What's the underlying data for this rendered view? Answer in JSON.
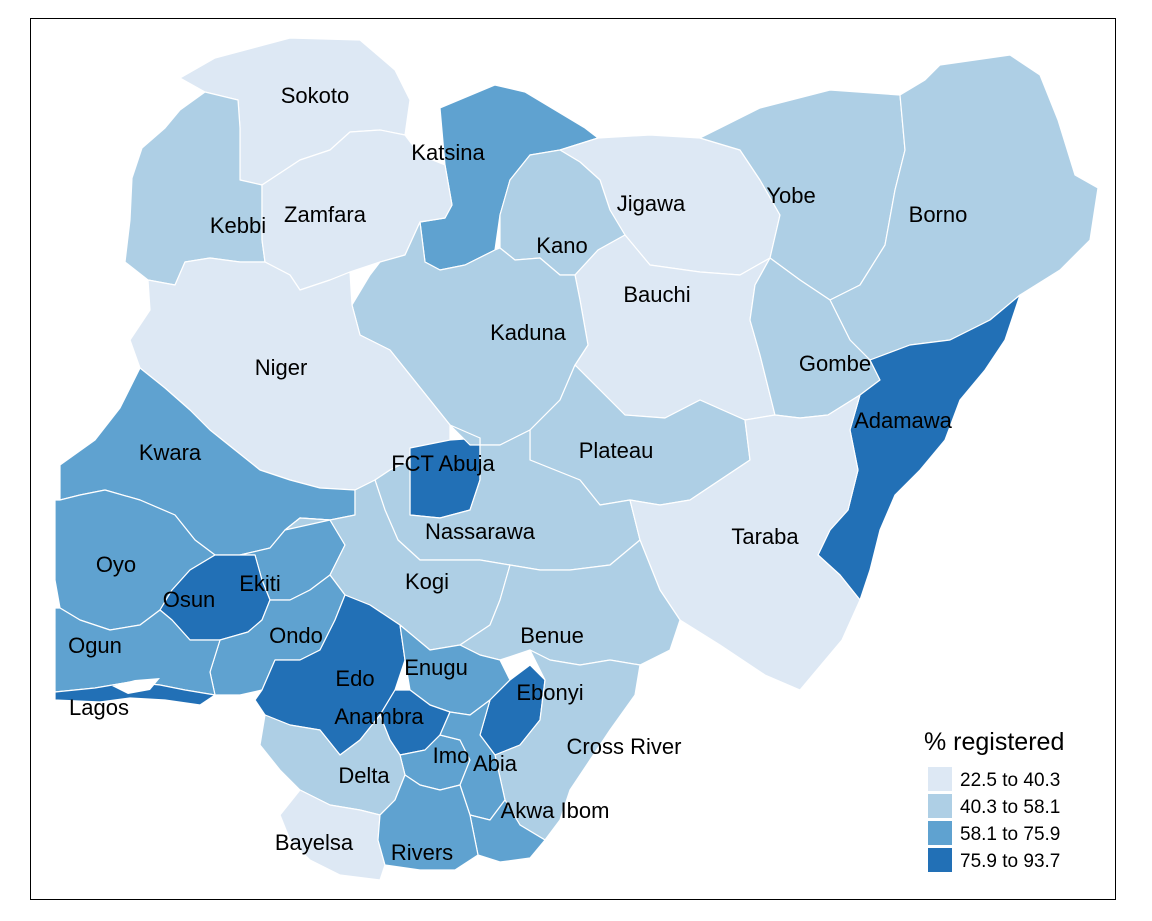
{
  "legend": {
    "title": "% registered",
    "bins": [
      {
        "label": "22.5 to 40.3",
        "color": "#dde8f4"
      },
      {
        "label": "40.3 to 58.1",
        "color": "#aecfe5"
      },
      {
        "label": "58.1 to 75.9",
        "color": "#5fa2d0"
      },
      {
        "label": "75.9 to 93.7",
        "color": "#2270b6"
      }
    ]
  },
  "states": [
    {
      "name": "Sokoto",
      "bin": 0
    },
    {
      "name": "Katsina",
      "bin": 2
    },
    {
      "name": "Kebbi",
      "bin": 1
    },
    {
      "name": "Zamfara",
      "bin": 0
    },
    {
      "name": "Jigawa",
      "bin": 0
    },
    {
      "name": "Kano",
      "bin": 1
    },
    {
      "name": "Yobe",
      "bin": 1
    },
    {
      "name": "Borno",
      "bin": 1
    },
    {
      "name": "Bauchi",
      "bin": 0
    },
    {
      "name": "Kaduna",
      "bin": 1
    },
    {
      "name": "Niger",
      "bin": 0
    },
    {
      "name": "Gombe",
      "bin": 1
    },
    {
      "name": "Adamawa",
      "bin": 3
    },
    {
      "name": "Kwara",
      "bin": 2
    },
    {
      "name": "FCT Abuja",
      "bin": 3
    },
    {
      "name": "Plateau",
      "bin": 1
    },
    {
      "name": "Nassarawa",
      "bin": 1
    },
    {
      "name": "Taraba",
      "bin": 0
    },
    {
      "name": "Oyo",
      "bin": 2
    },
    {
      "name": "Ekiti",
      "bin": 2
    },
    {
      "name": "Osun",
      "bin": 3
    },
    {
      "name": "Kogi",
      "bin": 1
    },
    {
      "name": "Ondo",
      "bin": 2
    },
    {
      "name": "Benue",
      "bin": 1
    },
    {
      "name": "Ogun",
      "bin": 2
    },
    {
      "name": "Edo",
      "bin": 3
    },
    {
      "name": "Enugu",
      "bin": 2
    },
    {
      "name": "Ebonyi",
      "bin": 3
    },
    {
      "name": "Lagos",
      "bin": 3
    },
    {
      "name": "Anambra",
      "bin": 3
    },
    {
      "name": "Cross River",
      "bin": 1
    },
    {
      "name": "Imo",
      "bin": 2
    },
    {
      "name": "Abia",
      "bin": 2
    },
    {
      "name": "Delta",
      "bin": 1
    },
    {
      "name": "Akwa Ibom",
      "bin": 2
    },
    {
      "name": "Bayelsa",
      "bin": 0
    },
    {
      "name": "Rivers",
      "bin": 2
    }
  ]
}
